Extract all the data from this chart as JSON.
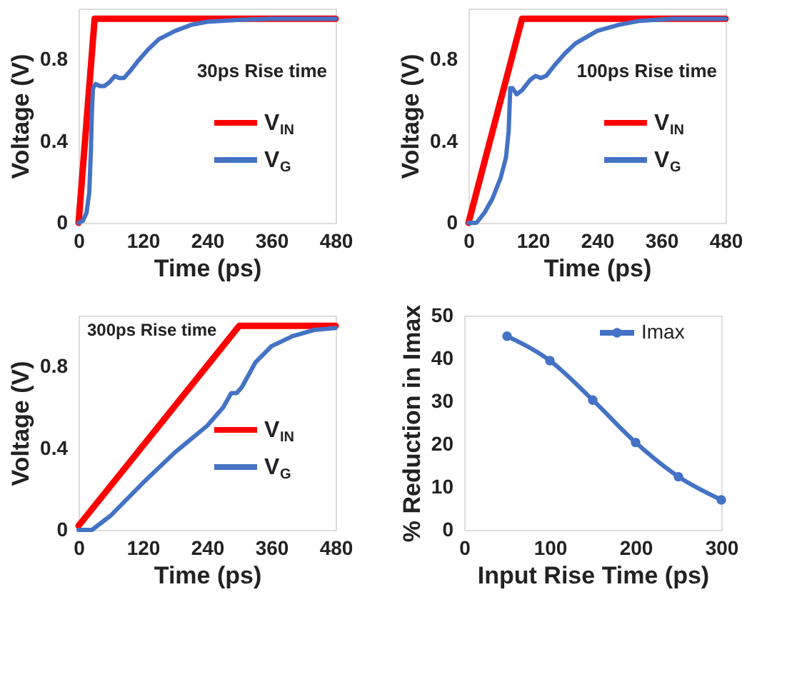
{
  "chart_data": [
    {
      "type": "line",
      "xlabel": "Time (ps)",
      "ylabel": "Voltage (V)",
      "xlim": [
        0,
        480
      ],
      "ylim": [
        0,
        1.05
      ],
      "xticks": [
        0,
        120,
        240,
        360,
        480
      ],
      "yticks": [
        0,
        0.4,
        0.8
      ],
      "grid": false,
      "legend": "bottom right",
      "annotations": [
        "30ps Rise time"
      ],
      "series": [
        {
          "name": "V$_{IN}$",
          "color": "#ff0000",
          "x": [
            0,
            30,
            480
          ],
          "values": [
            0,
            1.0,
            1.0
          ]
        },
        {
          "name": "V$_{G}$",
          "color": "#4472c4",
          "x": [
            0,
            8,
            15,
            20,
            23,
            25,
            27,
            32,
            40,
            48,
            58,
            68,
            75,
            85,
            95,
            110,
            130,
            150,
            180,
            210,
            240,
            300,
            360,
            480
          ],
          "values": [
            0,
            0.01,
            0.05,
            0.15,
            0.35,
            0.55,
            0.66,
            0.68,
            0.67,
            0.67,
            0.69,
            0.72,
            0.71,
            0.71,
            0.74,
            0.79,
            0.85,
            0.9,
            0.94,
            0.97,
            0.985,
            0.995,
            1.0,
            1.0
          ]
        }
      ]
    },
    {
      "type": "line",
      "xlabel": "Time (ps)",
      "ylabel": "Voltage (V)",
      "xlim": [
        0,
        480
      ],
      "ylim": [
        0,
        1.05
      ],
      "xticks": [
        0,
        120,
        240,
        360,
        480
      ],
      "yticks": [
        0,
        0.4,
        0.8
      ],
      "grid": false,
      "legend": "bottom right",
      "annotations": [
        "100ps Rise time"
      ],
      "series": [
        {
          "name": "V$_{IN}$",
          "color": "#ff0000",
          "x": [
            0,
            100,
            480
          ],
          "values": [
            0,
            1.0,
            1.0
          ]
        },
        {
          "name": "V$_{G}$",
          "color": "#4472c4",
          "x": [
            0,
            15,
            30,
            45,
            60,
            70,
            75,
            78,
            82,
            90,
            100,
            115,
            125,
            135,
            145,
            160,
            180,
            200,
            240,
            280,
            320,
            380,
            480
          ],
          "values": [
            0,
            0,
            0.05,
            0.12,
            0.22,
            0.32,
            0.45,
            0.66,
            0.66,
            0.63,
            0.65,
            0.7,
            0.72,
            0.71,
            0.72,
            0.77,
            0.83,
            0.88,
            0.94,
            0.97,
            0.99,
            1.0,
            1.0
          ]
        }
      ]
    },
    {
      "type": "line",
      "xlabel": "Time (ps)",
      "ylabel": "Voltage (V)",
      "xlim": [
        0,
        480
      ],
      "ylim": [
        0,
        1.05
      ],
      "xticks": [
        0,
        120,
        240,
        360,
        480
      ],
      "yticks": [
        0,
        0.4,
        0.8
      ],
      "grid": false,
      "legend": "bottom right",
      "annotations": [
        "300ps Rise time"
      ],
      "series": [
        {
          "name": "V$_{IN}$",
          "color": "#ff0000",
          "x": [
            0,
            300,
            480
          ],
          "values": [
            0.02,
            1.0,
            1.0
          ]
        },
        {
          "name": "V$_{G}$",
          "color": "#4472c4",
          "x": [
            0,
            25,
            60,
            120,
            180,
            240,
            270,
            285,
            295,
            305,
            330,
            360,
            400,
            440,
            480
          ],
          "values": [
            0,
            0,
            0.07,
            0.23,
            0.38,
            0.51,
            0.6,
            0.67,
            0.67,
            0.7,
            0.82,
            0.9,
            0.95,
            0.98,
            0.99
          ]
        }
      ]
    },
    {
      "type": "line",
      "xlabel": "Input Rise Time (ps)",
      "ylabel": "% Reduction in Imax",
      "xlim": [
        0,
        300
      ],
      "ylim": [
        0,
        50
      ],
      "xticks": [
        0,
        100,
        200,
        300
      ],
      "yticks": [
        0,
        10,
        20,
        30,
        40,
        50
      ],
      "grid": false,
      "legend": "top right",
      "marker": "circle",
      "series": [
        {
          "name": "Imax",
          "color": "#4472c4",
          "x": [
            50,
            100,
            150,
            200,
            250,
            300
          ],
          "values": [
            45.2,
            39.5,
            30.3,
            20.4,
            12.4,
            7
          ]
        }
      ]
    }
  ]
}
